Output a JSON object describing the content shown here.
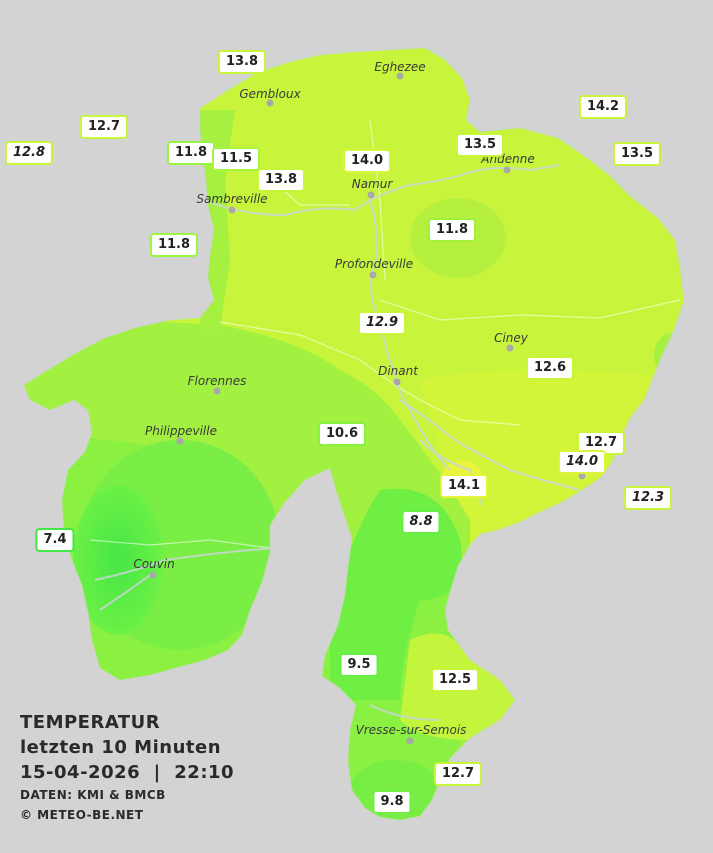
{
  "legend": {
    "title": "TEMPERATUR",
    "subtitle": "letzten 10 Minuten",
    "datetime": "15-04-2026  |  22:10",
    "source": "DATEN: KMI & BMCB",
    "copyright": "© METEO-BE.NET"
  },
  "cities": [
    {
      "name": "Eghezee"
    },
    {
      "name": "Gembloux"
    },
    {
      "name": "Andenne"
    },
    {
      "name": "Namur"
    },
    {
      "name": "Sambreville"
    },
    {
      "name": "Profondeville"
    },
    {
      "name": "Ciney"
    },
    {
      "name": "Dinant"
    },
    {
      "name": "Florennes"
    },
    {
      "name": "Philippeville"
    },
    {
      "name": "Couvin"
    },
    {
      "name": "Vresse-sur-Semois"
    }
  ],
  "stations": [
    {
      "value": "13.8",
      "border": "#c8f53a"
    },
    {
      "value": "14.2",
      "border": "#c8f53a"
    },
    {
      "value": "12.7",
      "border": "#c8f53a"
    },
    {
      "value": "12.8",
      "border": "#c8f53a"
    },
    {
      "value": "11.8",
      "border": "#96f542"
    },
    {
      "value": "11.5",
      "border": "#a8f53e"
    },
    {
      "value": "13.8",
      "border": "#c8f53a"
    },
    {
      "value": "14.0",
      "border": "#d7f53a"
    },
    {
      "value": "13.5",
      "border": "#c8f53a"
    },
    {
      "value": "13.5",
      "border": "#c8f53a"
    },
    {
      "value": "11.8",
      "border": "#9df540"
    },
    {
      "value": "11.8",
      "border": "#a0f03e"
    },
    {
      "value": "12.9",
      "border": "#c8f53a"
    },
    {
      "value": "12.6",
      "border": "#c8f53a"
    },
    {
      "value": "10.6",
      "border": "#88f040"
    },
    {
      "value": "12.7",
      "border": "#c8f53a"
    },
    {
      "value": "14.0",
      "border": "#dcf53a"
    },
    {
      "value": "14.1",
      "border": "#e6f53a"
    },
    {
      "value": "12.3",
      "border": "#c8f53a"
    },
    {
      "value": "8.8",
      "border": "#66ee44"
    },
    {
      "value": "7.4",
      "border": "#44e844"
    },
    {
      "value": "9.5",
      "border": "#66ee44"
    },
    {
      "value": "12.5",
      "border": "#c8f53a"
    },
    {
      "value": "12.7",
      "border": "#c8f53a"
    },
    {
      "value": "9.8",
      "border": "#70ee44"
    }
  ]
}
